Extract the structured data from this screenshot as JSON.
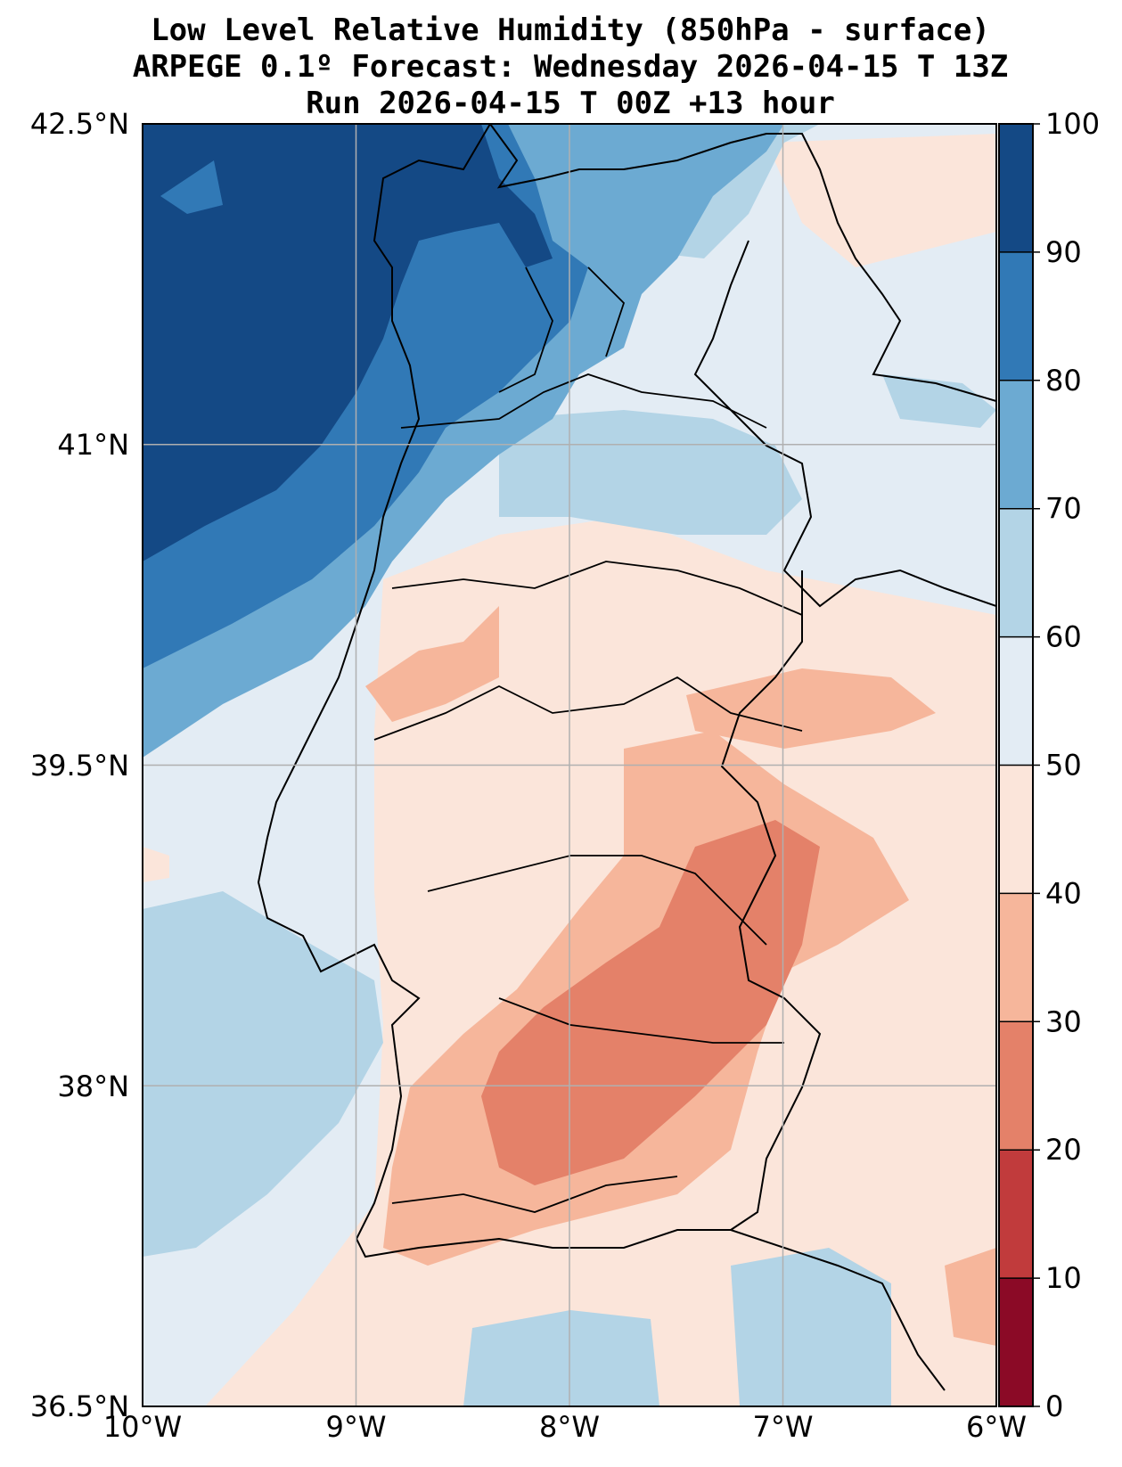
{
  "title": {
    "line1": "Low Level Relative Humidity (850hPa - surface)",
    "line2": "ARPEGE 0.1º Forecast: Wednesday 2026-04-15 T 13Z",
    "line3": "Run 2026-04-15 T 00Z +13 hour"
  },
  "chart_data": {
    "type": "heatmap",
    "variable": "Low Level Relative Humidity (850hPa - surface)",
    "units": "%",
    "lon_range": [
      -10,
      -6
    ],
    "lat_range": [
      36.5,
      42.5
    ],
    "x_ticks": [
      "10°W",
      "9°W",
      "8°W",
      "7°W",
      "6°W"
    ],
    "y_ticks": [
      "42.5°N",
      "41°N",
      "39.5°N",
      "38°N",
      "36.5°N"
    ],
    "grid": true,
    "colorbar": {
      "levels": [
        0,
        10,
        20,
        30,
        40,
        50,
        60,
        70,
        80,
        90,
        100
      ],
      "tick_labels": [
        "0",
        "10",
        "20",
        "30",
        "40",
        "50",
        "60",
        "70",
        "80",
        "90",
        "100"
      ],
      "colors": [
        "#8b0a26",
        "#c13b3c",
        "#e48169",
        "#f6b69b",
        "#fbe5da",
        "#e3ecf4",
        "#b3d4e6",
        "#6caad2",
        "#3179b6",
        "#144985"
      ],
      "placement": "right"
    }
  }
}
